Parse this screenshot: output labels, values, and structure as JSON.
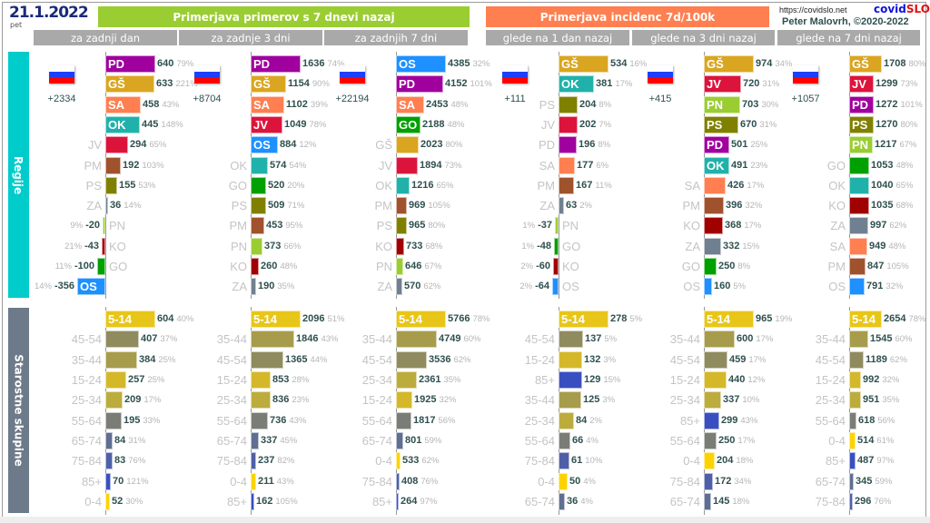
{
  "header": {
    "date": "21.1.2022",
    "weekday": "pet",
    "left_banner": "Primerjava primerov s 7 dnevi nazaj",
    "right_banner": "Primerjava incidenc 7d/100k",
    "left_tabs": [
      "za zadnji dan",
      "za zadnje 3 dni",
      "za zadnjih 7 dni"
    ],
    "right_tabs": [
      "glede na 1 dan nazaj",
      "glede na 3 dni nazaj",
      "glede na 7 dni nazaj"
    ],
    "url": "https://covidslo.net",
    "brand_a": "covid",
    "brand_b": "SLO",
    "author": "Peter Malovrh, ©2020-2022"
  },
  "sections": {
    "regions": "Regije",
    "ages": "Starostne skupine"
  },
  "colors": {
    "green_banner": "#9acd32",
    "orange_banner": "#ff7f50",
    "regions_band": "#00cccc",
    "ages_band": "#6c7a89",
    "regions": {
      "PD": "#a0009e",
      "GŠ": "#daa520",
      "SA": "#ff7f50",
      "OK": "#20b2aa",
      "JV": "#dc143c",
      "PM": "#a0522d",
      "PS": "#808000",
      "ZA": "#708090",
      "PN": "#9acd32",
      "KO": "#a00000",
      "GO": "#00a000",
      "OS": "#1e90ff"
    },
    "ages": {
      "5-14": "#e8c619",
      "45-54": "#8f8b5e",
      "35-44": "#a69c4c",
      "15-24": "#d4b82a",
      "25-34": "#bcac3e",
      "55-64": "#7a7d76",
      "65-74": "#5f6e92",
      "75-84": "#4f60a8",
      "85+": "#3a4fbf",
      "0-4": "#fcd300"
    }
  },
  "columns": [
    {
      "total": "+2334",
      "regions": [
        [
          "PD",
          640,
          "79%"
        ],
        [
          "GŠ",
          633,
          "221%"
        ],
        [
          "SA",
          458,
          "43%"
        ],
        [
          "OK",
          445,
          "148%"
        ],
        [
          "JV",
          294,
          "65%"
        ],
        [
          "PM",
          192,
          "103%"
        ],
        [
          "PS",
          155,
          "53%"
        ],
        [
          "ZA",
          36,
          "14%"
        ],
        [
          "PN",
          -20,
          "9%"
        ],
        [
          "KO",
          -43,
          "21%"
        ],
        [
          "GO",
          -100,
          "11%"
        ],
        [
          "OS",
          -356,
          "14%"
        ]
      ],
      "ages": [
        [
          "5-14",
          604,
          "40%"
        ],
        [
          "45-54",
          407,
          "37%"
        ],
        [
          "35-44",
          384,
          "25%"
        ],
        [
          "15-24",
          257,
          "25%"
        ],
        [
          "25-34",
          209,
          "17%"
        ],
        [
          "55-64",
          195,
          "33%"
        ],
        [
          "65-74",
          84,
          "31%"
        ],
        [
          "75-84",
          83,
          "76%"
        ],
        [
          "85+",
          70,
          "121%"
        ],
        [
          "0-4",
          52,
          "30%"
        ]
      ]
    },
    {
      "total": "+8704",
      "regions": [
        [
          "PD",
          1636,
          "74%"
        ],
        [
          "GŠ",
          1154,
          "90%"
        ],
        [
          "SA",
          1102,
          "39%"
        ],
        [
          "JV",
          1049,
          "78%"
        ],
        [
          "OS",
          884,
          "12%"
        ],
        [
          "OK",
          574,
          "54%"
        ],
        [
          "GO",
          520,
          "20%"
        ],
        [
          "PS",
          509,
          "71%"
        ],
        [
          "PM",
          453,
          "95%"
        ],
        [
          "PN",
          373,
          "66%"
        ],
        [
          "KO",
          260,
          "48%"
        ],
        [
          "ZA",
          190,
          "35%"
        ]
      ],
      "ages": [
        [
          "5-14",
          2096,
          "51%"
        ],
        [
          "35-44",
          1846,
          "43%"
        ],
        [
          "45-54",
          1365,
          "44%"
        ],
        [
          "15-24",
          853,
          "28%"
        ],
        [
          "25-34",
          836,
          "23%"
        ],
        [
          "55-64",
          736,
          "43%"
        ],
        [
          "65-74",
          337,
          "45%"
        ],
        [
          "75-84",
          237,
          "82%"
        ],
        [
          "0-4",
          211,
          "43%"
        ],
        [
          "85+",
          162,
          "105%"
        ]
      ]
    },
    {
      "total": "+22194",
      "regions": [
        [
          "OS",
          4385,
          "32%"
        ],
        [
          "PD",
          4152,
          "101%"
        ],
        [
          "SA",
          2453,
          "48%"
        ],
        [
          "GO",
          2188,
          "48%"
        ],
        [
          "GŠ",
          2023,
          "80%"
        ],
        [
          "JV",
          1894,
          "73%"
        ],
        [
          "OK",
          1216,
          "65%"
        ],
        [
          "PM",
          969,
          "105%"
        ],
        [
          "PS",
          965,
          "80%"
        ],
        [
          "KO",
          733,
          "68%"
        ],
        [
          "PN",
          646,
          "67%"
        ],
        [
          "ZA",
          570,
          "62%"
        ]
      ],
      "ages": [
        [
          "5-14",
          5766,
          "78%"
        ],
        [
          "35-44",
          4749,
          "60%"
        ],
        [
          "45-54",
          3536,
          "62%"
        ],
        [
          "25-34",
          2361,
          "35%"
        ],
        [
          "15-24",
          1925,
          "32%"
        ],
        [
          "55-64",
          1817,
          "56%"
        ],
        [
          "65-74",
          801,
          "59%"
        ],
        [
          "0-4",
          533,
          "62%"
        ],
        [
          "75-84",
          408,
          "76%"
        ],
        [
          "85+",
          264,
          "97%"
        ]
      ]
    },
    {
      "total": "+111",
      "regions": [
        [
          "GŠ",
          534,
          "16%"
        ],
        [
          "OK",
          381,
          "17%"
        ],
        [
          "PS",
          204,
          "8%"
        ],
        [
          "JV",
          202,
          "7%"
        ],
        [
          "PD",
          196,
          "8%"
        ],
        [
          "SA",
          177,
          "6%"
        ],
        [
          "PM",
          167,
          "11%"
        ],
        [
          "ZA",
          63,
          "2%"
        ],
        [
          "PN",
          -37,
          "1%"
        ],
        [
          "GO",
          -48,
          "1%"
        ],
        [
          "KO",
          -60,
          "2%"
        ],
        [
          "OS",
          -64,
          "2%"
        ]
      ],
      "ages": [
        [
          "5-14",
          278,
          "5%"
        ],
        [
          "45-54",
          137,
          "5%"
        ],
        [
          "15-24",
          132,
          "3%"
        ],
        [
          "85+",
          129,
          "15%"
        ],
        [
          "35-44",
          125,
          "3%"
        ],
        [
          "25-34",
          84,
          "2%"
        ],
        [
          "55-64",
          66,
          "4%"
        ],
        [
          "75-84",
          61,
          "10%"
        ],
        [
          "0-4",
          50,
          "4%"
        ],
        [
          "65-74",
          36,
          "4%"
        ]
      ]
    },
    {
      "total": "+415",
      "regions": [
        [
          "GŠ",
          974,
          "34%"
        ],
        [
          "JV",
          720,
          "31%"
        ],
        [
          "PN",
          703,
          "30%"
        ],
        [
          "PS",
          670,
          "31%"
        ],
        [
          "PD",
          501,
          "25%"
        ],
        [
          "OK",
          491,
          "23%"
        ],
        [
          "SA",
          426,
          "17%"
        ],
        [
          "PM",
          396,
          "32%"
        ],
        [
          "KO",
          368,
          "17%"
        ],
        [
          "ZA",
          332,
          "15%"
        ],
        [
          "GO",
          250,
          "8%"
        ],
        [
          "OS",
          160,
          "5%"
        ]
      ],
      "ages": [
        [
          "5-14",
          965,
          "19%"
        ],
        [
          "35-44",
          600,
          "17%"
        ],
        [
          "45-54",
          459,
          "17%"
        ],
        [
          "15-24",
          440,
          "12%"
        ],
        [
          "25-34",
          337,
          "10%"
        ],
        [
          "85+",
          299,
          "43%"
        ],
        [
          "55-64",
          250,
          "17%"
        ],
        [
          "0-4",
          204,
          "18%"
        ],
        [
          "75-84",
          172,
          "34%"
        ],
        [
          "65-74",
          145,
          "18%"
        ]
      ]
    },
    {
      "total": "+1057",
      "regions": [
        [
          "GŠ",
          1708,
          "80%"
        ],
        [
          "JV",
          1299,
          "73%"
        ],
        [
          "PD",
          1272,
          "101%"
        ],
        [
          "PS",
          1270,
          "80%"
        ],
        [
          "PN",
          1217,
          "67%"
        ],
        [
          "GO",
          1053,
          "48%"
        ],
        [
          "OK",
          1040,
          "65%"
        ],
        [
          "KO",
          1035,
          "68%"
        ],
        [
          "ZA",
          997,
          "62%"
        ],
        [
          "SA",
          949,
          "48%"
        ],
        [
          "PM",
          847,
          "105%"
        ],
        [
          "OS",
          791,
          "32%"
        ]
      ],
      "ages": [
        [
          "5-14",
          2654,
          "78%"
        ],
        [
          "35-44",
          1545,
          "60%"
        ],
        [
          "45-54",
          1189,
          "62%"
        ],
        [
          "15-24",
          992,
          "32%"
        ],
        [
          "25-34",
          951,
          "35%"
        ],
        [
          "55-64",
          618,
          "56%"
        ],
        [
          "0-4",
          514,
          "61%"
        ],
        [
          "85+",
          487,
          "97%"
        ],
        [
          "65-74",
          345,
          "59%"
        ],
        [
          "75-84",
          296,
          "76%"
        ]
      ]
    }
  ]
}
